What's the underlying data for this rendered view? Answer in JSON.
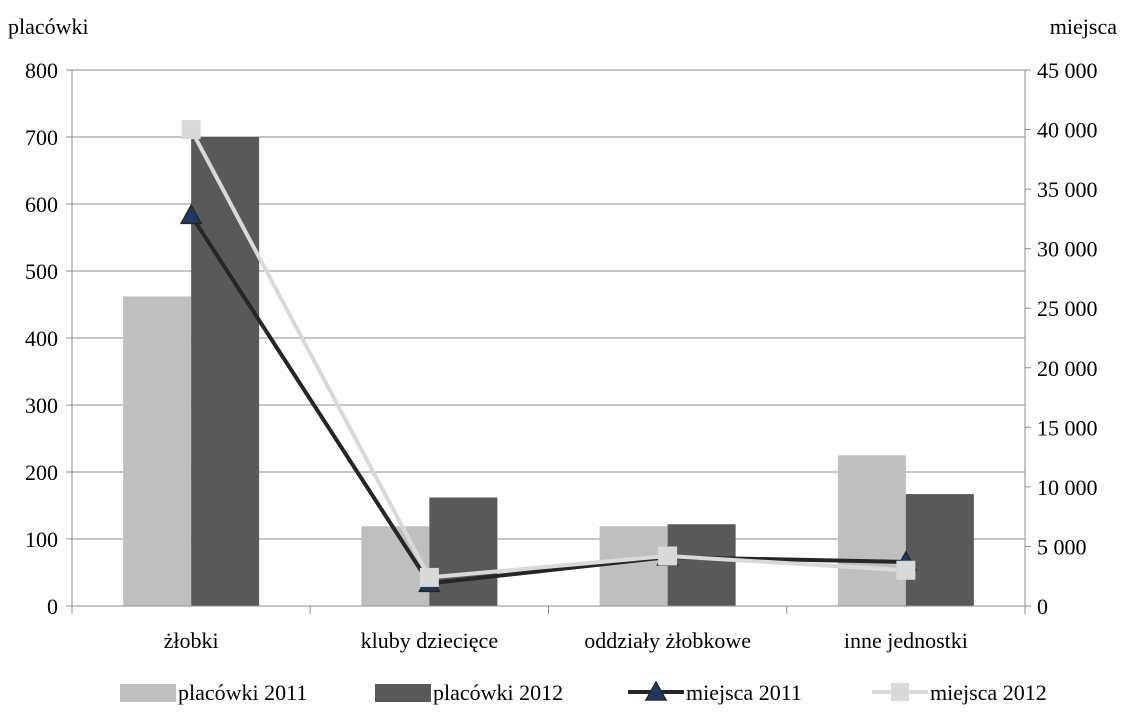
{
  "chart_data": {
    "type": "bar",
    "categories": [
      "żłobki",
      "kluby dziecięce",
      "oddziały żłobkowe",
      "inne jednostki"
    ],
    "y_left": {
      "label": "placówki",
      "range": [
        0,
        800
      ],
      "ticks": [
        0,
        100,
        200,
        300,
        400,
        500,
        600,
        700,
        800
      ],
      "tick_labels": [
        "0",
        "100",
        "200",
        "300",
        "400",
        "500",
        "600",
        "700",
        "800"
      ]
    },
    "y_right": {
      "label": "miejsca",
      "range": [
        0,
        45000
      ],
      "ticks": [
        0,
        5000,
        10000,
        15000,
        20000,
        25000,
        30000,
        35000,
        40000,
        45000
      ],
      "tick_labels": [
        "0",
        "5 000",
        "10 000",
        "15 000",
        "20 000",
        "25 000",
        "30 000",
        "35 000",
        "40 000",
        "45 000"
      ]
    },
    "grid": true,
    "legend_position": "bottom",
    "series": [
      {
        "name": "placówki 2011",
        "kind": "bar",
        "axis": "left",
        "color": "#bfbfbf",
        "values": [
          462,
          119,
          119,
          225
        ]
      },
      {
        "name": "placówki 2012",
        "kind": "bar",
        "axis": "left",
        "color": "#595959",
        "values": [
          700,
          162,
          122,
          167
        ]
      },
      {
        "name": "miejsca 2011",
        "kind": "line",
        "axis": "right",
        "color": "#262626",
        "marker": "triangle",
        "marker_color": "#1f3864",
        "values": [
          32800,
          1900,
          4100,
          3700
        ]
      },
      {
        "name": "miejsca 2012",
        "kind": "line",
        "axis": "right",
        "color": "#d9d9d9",
        "marker": "square",
        "marker_color": "#d9d9d9",
        "values": [
          40000,
          2400,
          4200,
          3000
        ]
      }
    ]
  }
}
